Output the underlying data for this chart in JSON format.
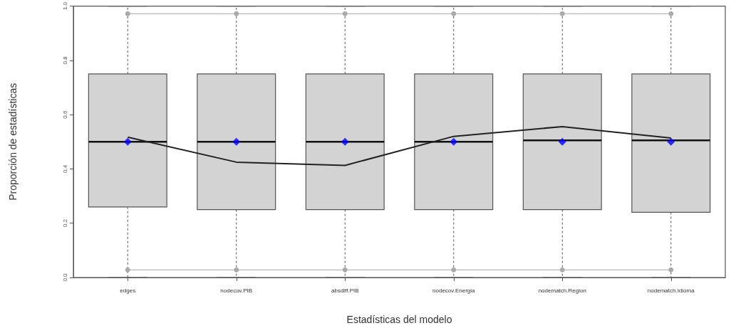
{
  "chart_data": {
    "type": "box",
    "xlabel": "Estadísticas del modelo",
    "ylabel": "Proporción de estadísticas",
    "categories": [
      "edges",
      "nodecov.PIB",
      "absdiff.PIB",
      "nodecov.Energia",
      "nodematch.Region",
      "nodematch.Idioma"
    ],
    "ylim": [
      0,
      1
    ],
    "yticks": [
      {
        "value": 0,
        "label": "0.0"
      },
      0.2,
      0.4,
      0.6,
      0.8,
      {
        "value": 1,
        "label": "1.0"
      }
    ],
    "series": [
      {
        "color": "#d3d3d3",
        "boxes": [
          {
            "low": 0,
            "q1": 0.26,
            "median": 0.5,
            "q3": 0.75,
            "high": 1
          },
          {
            "low": 0,
            "q1": 0.25,
            "median": 0.5,
            "q3": 0.75,
            "high": 1
          },
          {
            "low": 0,
            "q1": 0.25,
            "median": 0.5,
            "q3": 0.75,
            "high": 1
          },
          {
            "low": 0,
            "q1": 0.25,
            "median": 0.5,
            "q3": 0.75,
            "high": 1
          },
          {
            "low": 0,
            "q1": 0.25,
            "median": 0.505,
            "q3": 0.75,
            "high": 1
          },
          {
            "low": 0,
            "q1": 0.24,
            "median": 0.505,
            "q3": 0.75,
            "high": 1
          }
        ]
      },
      {
        "type": "line",
        "color": "#aaaaaa",
        "marker": "circle",
        "values": [
          0.972,
          0.972,
          0.972,
          0.972,
          0.972,
          0.972
        ]
      },
      {
        "type": "line",
        "color": "#aaaaaa",
        "marker": "circle",
        "values": [
          0.028,
          0.028,
          0.028,
          0.028,
          0.028,
          0.028
        ]
      },
      {
        "type": "line",
        "color": "#222222",
        "marker": "none",
        "values": [
          0.517,
          0.425,
          0.413,
          0.52,
          0.556,
          0.514
        ]
      },
      {
        "type": "scatter",
        "color": "#0000ff",
        "marker": "diamond",
        "values": [
          0.5,
          0.5,
          0.5,
          0.5,
          0.5,
          0.5
        ]
      }
    ]
  }
}
